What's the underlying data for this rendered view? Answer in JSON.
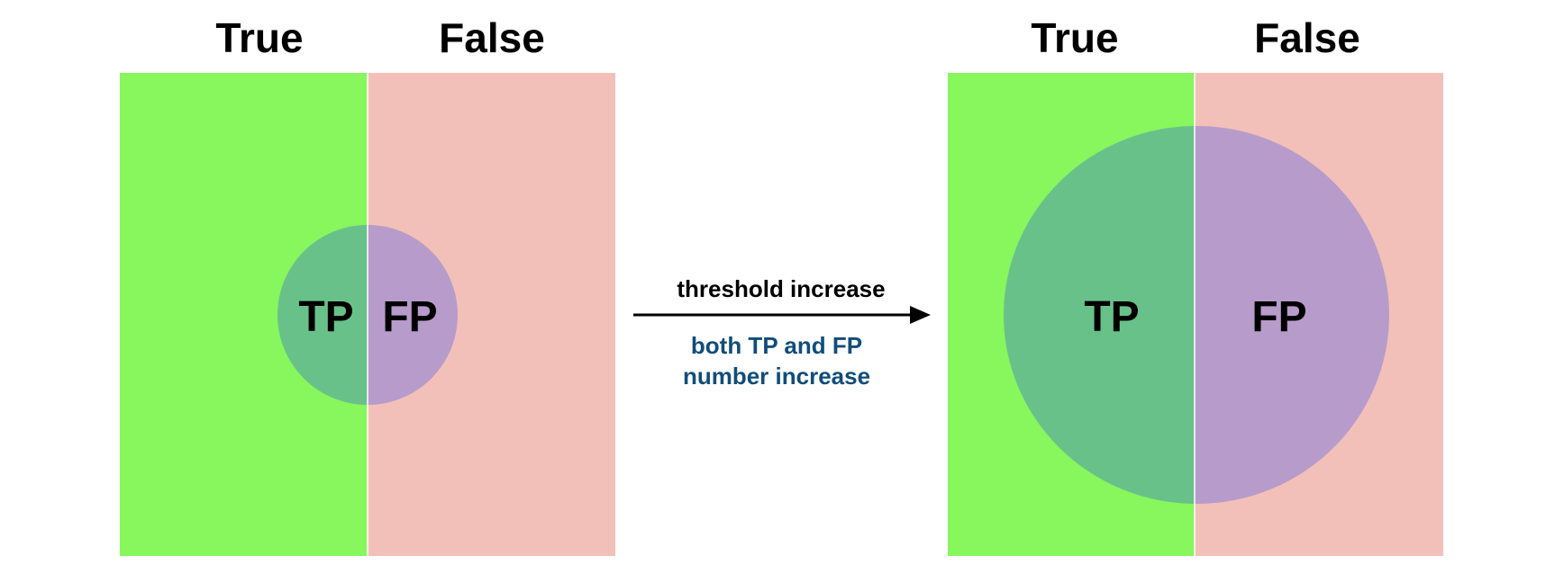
{
  "colors": {
    "true_region": "#88f65d",
    "false_region": "#f2c0b8",
    "tp_region": "#69c18a",
    "fp_region": "#b79bcb",
    "divider": "#ffffff",
    "arrow": "#000000",
    "note_text": "#114d7a"
  },
  "left_panel": {
    "true_label": "True",
    "false_label": "False",
    "tp_label": "TP",
    "fp_label": "FP"
  },
  "right_panel": {
    "true_label": "True",
    "false_label": "False",
    "tp_label": "TP",
    "fp_label": "FP"
  },
  "transition": {
    "label": "threshold increase",
    "note_line1": "both TP and FP",
    "note_line2": "number increase"
  }
}
